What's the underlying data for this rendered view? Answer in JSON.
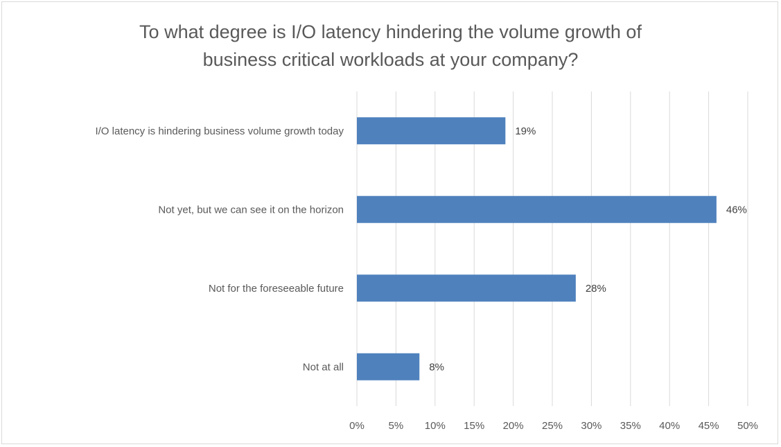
{
  "chart_data": {
    "type": "bar",
    "orientation": "horizontal",
    "title_lines": [
      "To what degree is I/O latency hindering the volume growth of",
      "business critical workloads at your company?"
    ],
    "categories": [
      "I/O latency is hindering business volume growth today",
      "Not yet, but we can see it on the horizon",
      "Not for the foreseeable future",
      "Not at all"
    ],
    "values": [
      19,
      46,
      28,
      8
    ],
    "data_labels": [
      "19%",
      "46%",
      "28%",
      "8%"
    ],
    "xlim": [
      0,
      50
    ],
    "x_ticks": [
      "0%",
      "5%",
      "10%",
      "15%",
      "20%",
      "25%",
      "30%",
      "35%",
      "40%",
      "45%",
      "50%"
    ],
    "xlabel": "",
    "ylabel": "",
    "grid": "vertical",
    "legend": "none",
    "bar_color": "#4f81bd"
  }
}
